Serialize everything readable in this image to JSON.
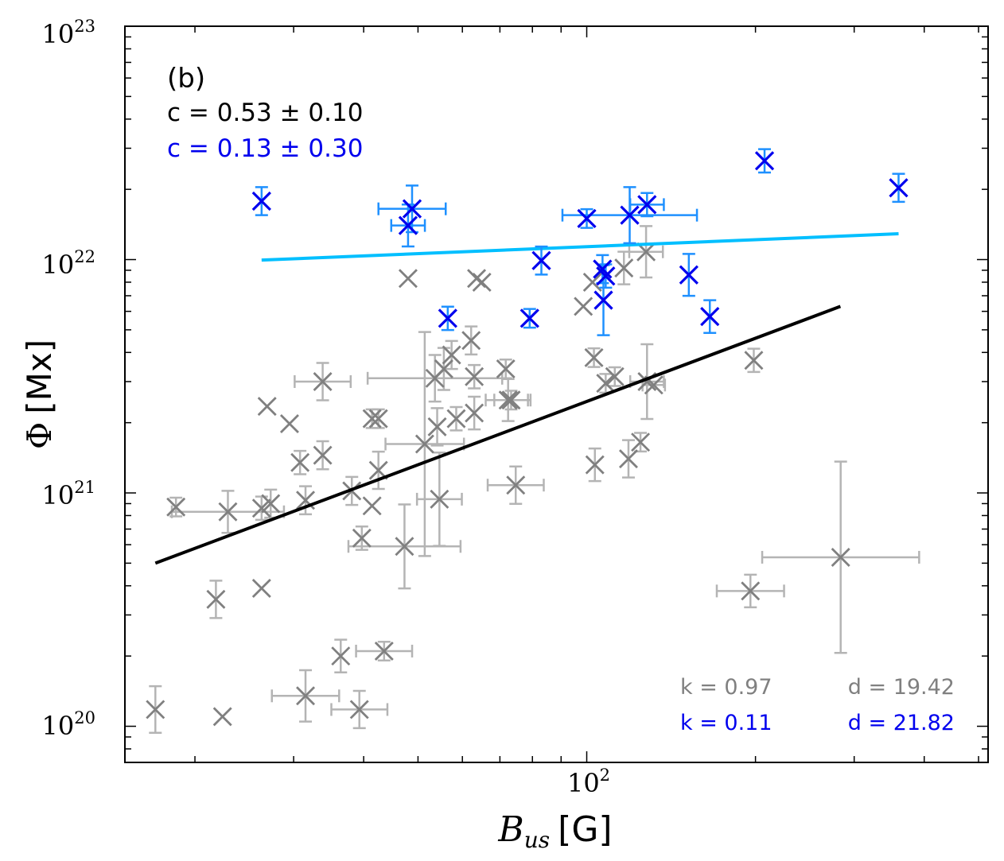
{
  "chart_data": {
    "type": "scatter",
    "panel_label": "(b)",
    "xlabel": {
      "var": "B",
      "sub": "us",
      "unit": "[G]"
    },
    "ylabel": {
      "var": "Φ",
      "unit": "[Mx]"
    },
    "xscale": "log",
    "yscale": "log",
    "xlim": [
      15,
      520
    ],
    "ylim": [
      7e+19,
      1e+23
    ],
    "x_tick_labels": [
      {
        "base": "10",
        "exp": "2",
        "value": 100
      }
    ],
    "y_tick_labels": [
      {
        "base": "10",
        "exp": "20",
        "value": 1e+20
      },
      {
        "base": "10",
        "exp": "21",
        "value": 1e+21
      },
      {
        "base": "10",
        "exp": "22",
        "value": 1e+22
      },
      {
        "base": "10",
        "exp": "23",
        "value": 1e+23
      }
    ],
    "annotations": {
      "c_gray": "c = 0.53 ± 0.10",
      "c_blue": "c = 0.13 ± 0.30",
      "k_gray": "k = 0.97",
      "d_gray": "d = 19.42",
      "k_blue": "k = 0.11",
      "d_blue": "d = 21.82"
    },
    "colors": {
      "gray_marker": "#808080",
      "gray_error": "#b4b4b4",
      "blue_marker": "#0000ee",
      "blue_error": "#1e90ff",
      "gray_fit": "#000000",
      "blue_fit": "#00bfff",
      "text_gray": "#808080",
      "text_blue": "#0000ee",
      "text_black": "#000000"
    },
    "series": [
      {
        "name": "gray",
        "points": [
          {
            "x": 17.0,
            "y": 1.18e+20,
            "dy": 0.1
          },
          {
            "x": 18.5,
            "y": 8.7e+20,
            "dy": 0.04
          },
          {
            "x": 21.8,
            "y": 3.5e+20,
            "dy": 0.08
          },
          {
            "x": 22.4,
            "y": 1.1e+20
          },
          {
            "x": 22.9,
            "y": 8.3e+20,
            "dx": 0.1,
            "dy": 0.09
          },
          {
            "x": 26.3,
            "y": 3.9e+20
          },
          {
            "x": 26.3,
            "y": 8.6e+20,
            "dy": 0.05
          },
          {
            "x": 26.9,
            "y": 2.35e+21
          },
          {
            "x": 27.3,
            "y": 9e+20,
            "dy": 0.06
          },
          {
            "x": 29.5,
            "y": 1.98e+21
          },
          {
            "x": 30.8,
            "y": 1.35e+21,
            "dy": 0.05
          },
          {
            "x": 31.5,
            "y": 1.35e+20,
            "dx": 0.06,
            "dy": 0.11
          },
          {
            "x": 31.5,
            "y": 9.3e+20,
            "dy": 0.06
          },
          {
            "x": 33.8,
            "y": 1.45e+21,
            "dy": 0.06
          },
          {
            "x": 33.8,
            "y": 3e+21,
            "dx": 0.05,
            "dy": 0.08
          },
          {
            "x": 36.4,
            "y": 2e+20,
            "dy": 0.07
          },
          {
            "x": 38.1,
            "y": 1.02e+21,
            "dy": 0.06
          },
          {
            "x": 39.3,
            "y": 1.18e+20,
            "dx": 0.05,
            "dy": 0.08
          },
          {
            "x": 39.7,
            "y": 6.4e+20,
            "dy": 0.05
          },
          {
            "x": 41.4,
            "y": 8.8e+20
          },
          {
            "x": 41.4,
            "y": 2.08e+21,
            "dy": 0.04
          },
          {
            "x": 42.5,
            "y": 1.25e+21,
            "dy": 0.08
          },
          {
            "x": 42.5,
            "y": 2.08e+21,
            "dy": 0.04
          },
          {
            "x": 43.5,
            "y": 2.1e+20,
            "dx": 0.05,
            "dy": 0.04
          },
          {
            "x": 47.3,
            "y": 5.9e+20,
            "dx": 0.1,
            "dy": 0.18
          },
          {
            "x": 48.0,
            "y": 8.3e+21
          },
          {
            "x": 51.4,
            "y": 1.62e+21,
            "dx": 0.07,
            "dy": 0.48
          },
          {
            "x": 53.6,
            "y": 3.1e+21,
            "dx": 0.12,
            "dy": 0.1
          },
          {
            "x": 54.1,
            "y": 1.92e+21,
            "dy": 0.08
          },
          {
            "x": 54.6,
            "y": 9.4e+20,
            "dx": 0.04,
            "dy": 0.2
          },
          {
            "x": 55.6,
            "y": 3.4e+21,
            "dy": 0.09
          },
          {
            "x": 57.4,
            "y": 3.9e+21,
            "dy": 0.06
          },
          {
            "x": 58.5,
            "y": 2.08e+21,
            "dy": 0.05
          },
          {
            "x": 62.2,
            "y": 4.5e+21,
            "dy": 0.06
          },
          {
            "x": 63.0,
            "y": 3.15e+21,
            "dy": 0.05
          },
          {
            "x": 63.6,
            "y": 8.3e+21
          },
          {
            "x": 63.0,
            "y": 2.2e+21,
            "dy": 0.07
          },
          {
            "x": 65.0,
            "y": 8e+21
          },
          {
            "x": 71.7,
            "y": 3.4e+21,
            "dy": 0.04
          },
          {
            "x": 72.4,
            "y": 2.5e+21,
            "dx": 0.04,
            "dy": 0.09
          },
          {
            "x": 73.3,
            "y": 2.5e+21,
            "dx": 0.03,
            "dy": 0.04
          },
          {
            "x": 74.7,
            "y": 1.08e+21,
            "dx": 0.05,
            "dy": 0.08
          },
          {
            "x": 98.6,
            "y": 6.3e+21
          },
          {
            "x": 102.4,
            "y": 8e+21
          },
          {
            "x": 103.0,
            "y": 3.8e+21,
            "dy": 0.04
          },
          {
            "x": 103.4,
            "y": 1.32e+21,
            "dy": 0.07
          },
          {
            "x": 108.1,
            "y": 2.95e+21,
            "dy": 0.04
          },
          {
            "x": 112.2,
            "y": 3.15e+21,
            "dy": 0.04
          },
          {
            "x": 116.5,
            "y": 9.2e+21,
            "dy": 0.07
          },
          {
            "x": 118.7,
            "y": 1.4e+21,
            "dy": 0.08
          },
          {
            "x": 124.7,
            "y": 1.65e+21,
            "dy": 0.04
          },
          {
            "x": 127.6,
            "y": 1.08e+22,
            "dx": 0.03,
            "dy": 0.11
          },
          {
            "x": 128.1,
            "y": 3e+21,
            "dx": 0.03,
            "dy": 0.16
          },
          {
            "x": 131.7,
            "y": 2.9e+21,
            "dx": 0.02
          },
          {
            "x": 198.6,
            "y": 3.7e+21,
            "dy": 0.05
          },
          {
            "x": 195.9,
            "y": 3.8e+20,
            "dx": 0.06,
            "dy": 0.07
          },
          {
            "x": 283.8,
            "y": 5.3e+20,
            "dx": 0.14,
            "dy": 0.41
          }
        ]
      },
      {
        "name": "blue",
        "points": [
          {
            "x": 26.3,
            "y": 1.78e+22,
            "dy": 0.06
          },
          {
            "x": 48.0,
            "y": 1.4e+22,
            "dx": 0.03,
            "dy": 0.09
          },
          {
            "x": 48.8,
            "y": 1.65e+22,
            "dx": 0.06,
            "dy": 0.1
          },
          {
            "x": 56.5,
            "y": 5.6e+21,
            "dy": 0.05
          },
          {
            "x": 79.1,
            "y": 5.6e+21,
            "dy": 0.04
          },
          {
            "x": 83.0,
            "y": 9.9e+21,
            "dy": 0.06
          },
          {
            "x": 100.0,
            "y": 1.5e+22,
            "dy": 0.04
          },
          {
            "x": 106.7,
            "y": 9.1e+21,
            "dy": 0.06
          },
          {
            "x": 108.1,
            "y": 8.5e+21,
            "dy": 0.05
          },
          {
            "x": 107.1,
            "y": 6.7e+21,
            "dy": 0.15
          },
          {
            "x": 119.3,
            "y": 1.55e+22,
            "dx": 0.12,
            "dy": 0.12
          },
          {
            "x": 128.1,
            "y": 1.72e+22,
            "dx": 0.03,
            "dy": 0.05
          },
          {
            "x": 152.1,
            "y": 8.6e+21,
            "dy": 0.09
          },
          {
            "x": 165.8,
            "y": 5.7e+21,
            "dy": 0.07
          },
          {
            "x": 207.6,
            "y": 2.65e+22,
            "dy": 0.05
          },
          {
            "x": 360.0,
            "y": 2.03e+22,
            "dy": 0.06
          }
        ]
      }
    ],
    "fits": [
      {
        "name": "gray",
        "x0": 17.0,
        "y0": 5e+20,
        "x1": 283.5,
        "y1": 6.3e+21
      },
      {
        "name": "blue",
        "x0": 26.3,
        "y0": 9.95e+21,
        "x1": 360.0,
        "y1": 1.29e+22
      }
    ]
  }
}
